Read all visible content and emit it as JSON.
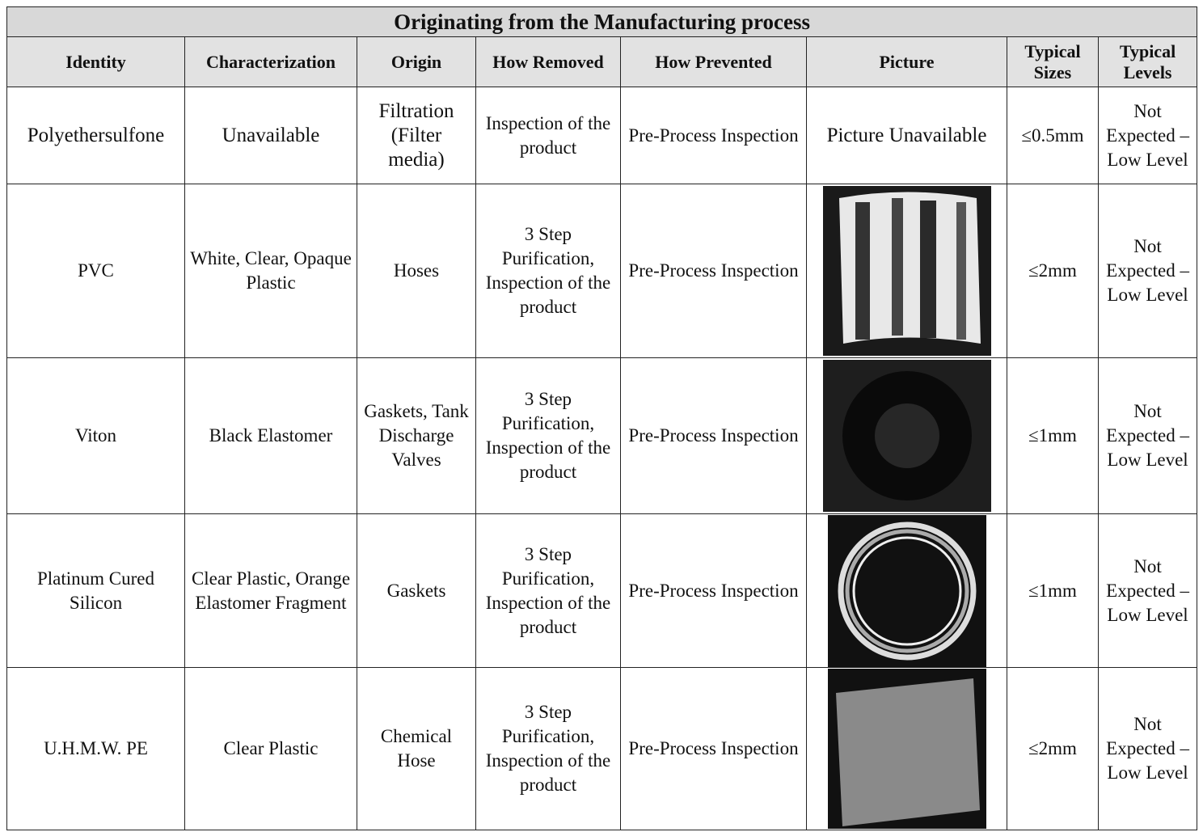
{
  "table": {
    "title": "Originating from the Manufacturing process",
    "headers": [
      "Identity",
      "Characterization",
      "Origin",
      "How Removed",
      "How Prevented",
      "Picture",
      "Typical Sizes",
      "Typical Levels"
    ],
    "rows": [
      {
        "identity": "Polyethersulfone",
        "characterization": "Unavailable",
        "origin": "Filtration (Filter media)",
        "how_removed": "Inspection of the product",
        "how_prevented": "Pre-Process Inspection",
        "picture": "Picture Unavailable",
        "typical_sizes": "≤0.5mm",
        "typical_levels": "Not Expected – Low Level"
      },
      {
        "identity": "PVC",
        "characterization": "White, Clear, Opaque Plastic",
        "origin": "Hoses",
        "how_removed": "3 Step Purification, Inspection of the product",
        "how_prevented": "Pre-Process Inspection",
        "typical_sizes": "≤2mm",
        "typical_levels": "Not Expected – Low Level"
      },
      {
        "identity": "Viton",
        "characterization": "Black Elastomer",
        "origin": "Gaskets, Tank Discharge Valves",
        "how_removed": "3 Step Purification, Inspection of the product",
        "how_prevented": "Pre-Process Inspection",
        "typical_sizes": "≤1mm",
        "typical_levels": "Not Expected – Low Level"
      },
      {
        "identity": "Platinum Cured Silicon",
        "characterization": "Clear Plastic, Orange Elastomer Fragment",
        "origin": "Gaskets",
        "how_removed": "3 Step Purification, Inspection of the product",
        "how_prevented": "Pre-Process Inspection",
        "typical_sizes": "≤1mm",
        "typical_levels": "Not Expected – Low Level"
      },
      {
        "identity": "U.H.M.W. PE",
        "characterization": "Clear Plastic",
        "origin": "Chemical Hose",
        "how_removed": "3 Step Purification, Inspection of the product",
        "how_prevented": "Pre-Process Inspection",
        "typical_sizes": "≤2mm",
        "typical_levels": "Not Expected – Low Level"
      }
    ]
  }
}
